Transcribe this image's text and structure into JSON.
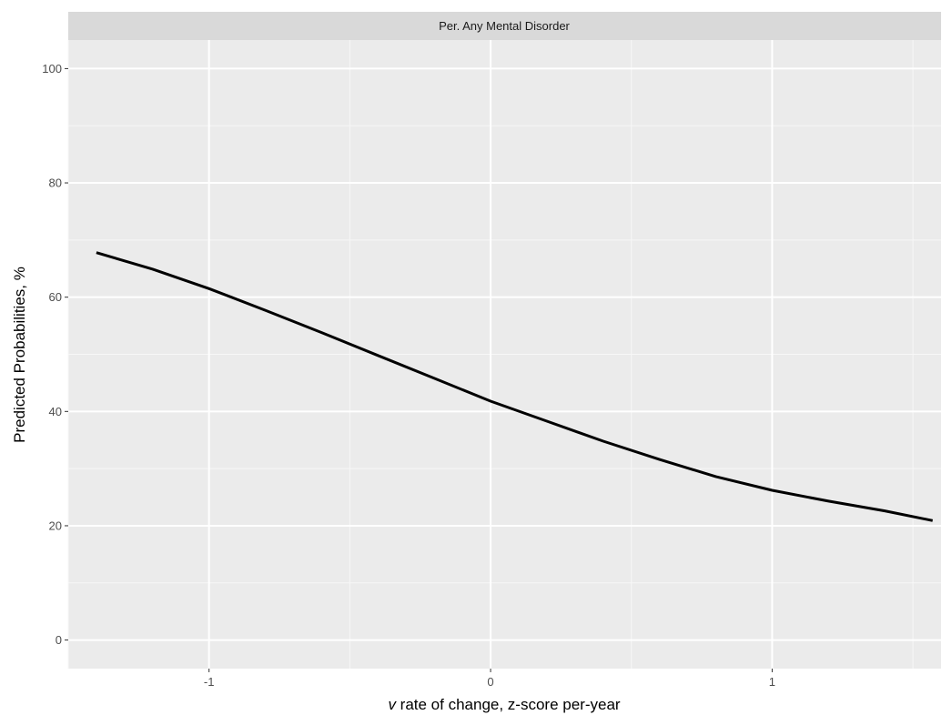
{
  "chart_data": {
    "type": "line",
    "facet_title": "Per. Any Mental Disorder",
    "xlabel_italic": "v",
    "xlabel_rest": " rate of change, z-score per-year",
    "ylabel": "Predicted Probabilities,  %",
    "xlim": [
      -1.5,
      1.6
    ],
    "ylim": [
      -5,
      105
    ],
    "x_ticks": [
      -1,
      0,
      1
    ],
    "x_tick_labels": [
      "-1",
      "0",
      "1"
    ],
    "y_ticks": [
      0,
      20,
      40,
      60,
      80,
      100
    ],
    "y_tick_labels": [
      "0",
      "20",
      "40",
      "60",
      "80",
      "100"
    ],
    "grid": true,
    "series": [
      {
        "color": "#000000",
        "x": [
          -1.4,
          -1.2,
          -1.0,
          -0.8,
          -0.6,
          -0.4,
          -0.2,
          0.0,
          0.2,
          0.4,
          0.6,
          0.8,
          1.0,
          1.2,
          1.4,
          1.57
        ],
        "y": [
          67.8,
          64.9,
          61.5,
          57.7,
          53.8,
          49.8,
          45.8,
          41.8,
          38.3,
          34.8,
          31.6,
          28.6,
          26.2,
          24.3,
          22.6,
          20.9
        ]
      }
    ]
  }
}
